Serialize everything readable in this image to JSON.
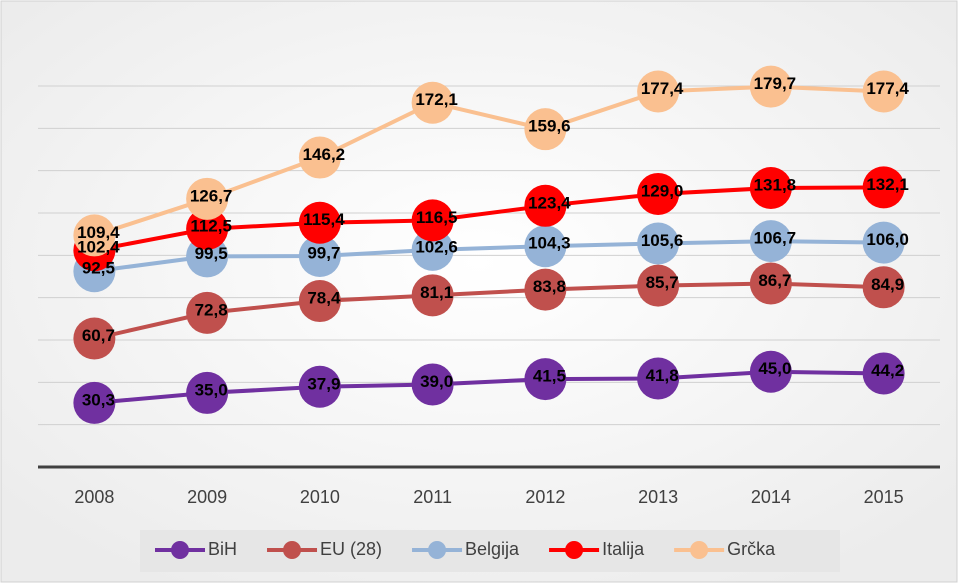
{
  "chart_data": {
    "type": "line",
    "categories": [
      "2008",
      "2009",
      "2010",
      "2011",
      "2012",
      "2013",
      "2014",
      "2015"
    ],
    "series": [
      {
        "name": "BiH",
        "color": "#7030a0",
        "values": [
          30.3,
          35.0,
          37.9,
          39.0,
          41.5,
          41.8,
          45.0,
          44.2
        ],
        "value_labels": [
          "30,3",
          "35,0",
          "37,9",
          "39,0",
          "41,5",
          "41,8",
          "45,0",
          "44,2"
        ]
      },
      {
        "name": "EU (28)",
        "color": "#c0504d",
        "values": [
          60.7,
          72.8,
          78.4,
          81.1,
          83.8,
          85.7,
          86.7,
          84.9
        ],
        "value_labels": [
          "60,7",
          "72,8",
          "78,4",
          "81,1",
          "83,8",
          "85,7",
          "86,7",
          "84,9"
        ]
      },
      {
        "name": "Belgija",
        "color": "#95b3d7",
        "values": [
          92.5,
          99.5,
          99.7,
          102.6,
          104.3,
          105.6,
          106.7,
          106.0
        ],
        "value_labels": [
          "92,5",
          "99,5",
          "99,7",
          "102,6",
          "104,3",
          "105,6",
          "106,7",
          "106,0"
        ]
      },
      {
        "name": "Italija",
        "color": "#ff0000",
        "values": [
          102.4,
          112.5,
          115.4,
          116.5,
          123.4,
          129.0,
          131.8,
          132.1
        ],
        "value_labels": [
          "102,4",
          "112,5",
          "115,4",
          "116,5",
          "123,4",
          "129,0",
          "131,8",
          "132,1"
        ]
      },
      {
        "name": "Grčka",
        "color": "#fac090",
        "values": [
          109.4,
          126.7,
          146.2,
          172.1,
          159.6,
          177.4,
          179.7,
          177.4
        ],
        "value_labels": [
          "109,4",
          "126,7",
          "146,2",
          "172,1",
          "159,6",
          "177,4",
          "179,7",
          "177,4"
        ]
      }
    ],
    "ylim": [
      0,
      180
    ],
    "yticks": [
      0,
      20,
      40,
      60,
      80,
      100,
      120,
      140,
      160,
      180
    ],
    "grid": true,
    "legend": "bottom"
  }
}
